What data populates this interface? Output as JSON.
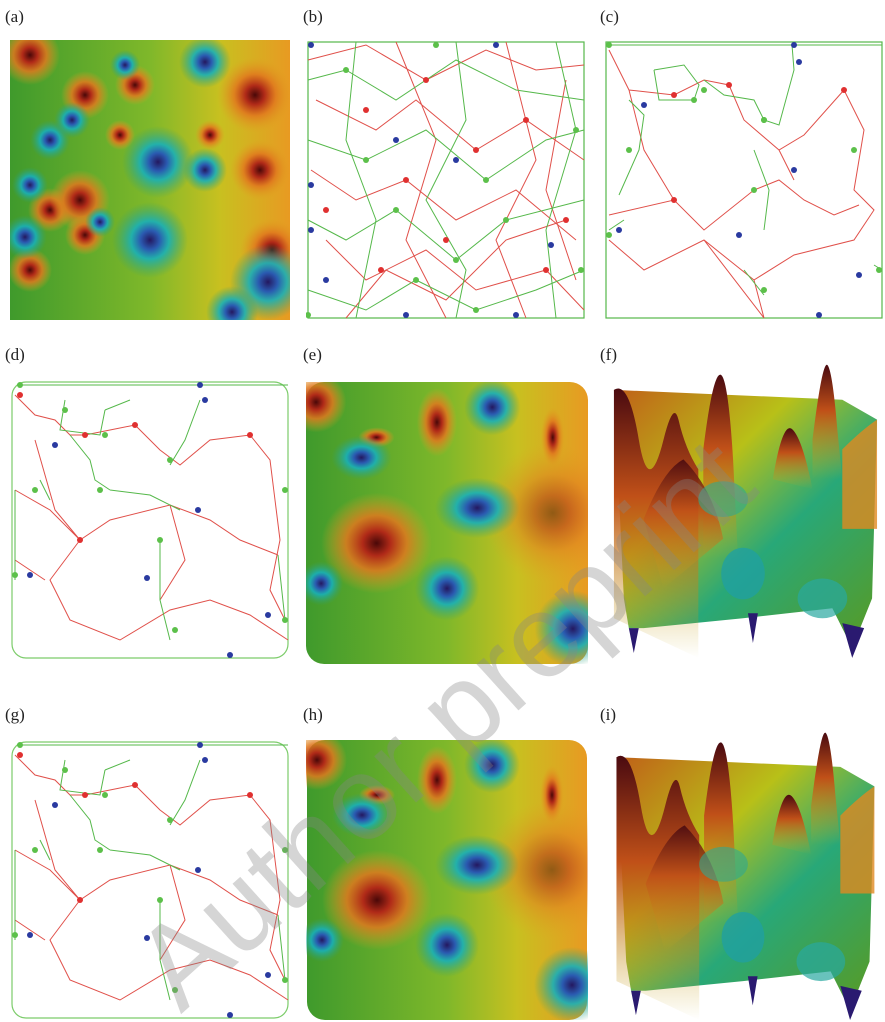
{
  "panels": [
    {
      "label": "(a)"
    },
    {
      "label": "(b)"
    },
    {
      "label": "(c)"
    },
    {
      "label": "(d)"
    },
    {
      "label": "(e)"
    },
    {
      "label": "(f)"
    },
    {
      "label": "(g)"
    },
    {
      "label": "(h)"
    },
    {
      "label": "(i)"
    }
  ],
  "watermark": "Author preprint"
}
